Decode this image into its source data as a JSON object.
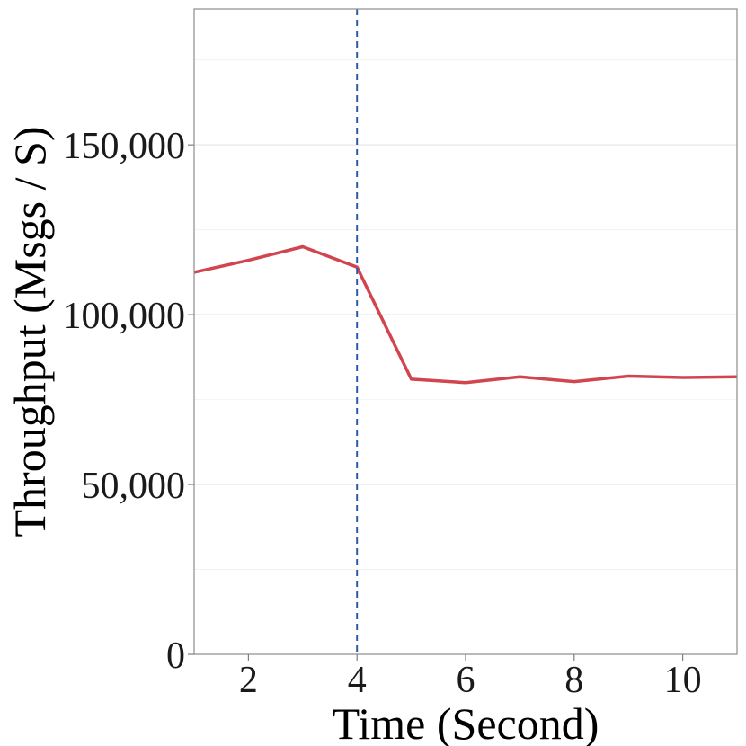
{
  "chart_data": {
    "type": "line",
    "xlabel": "Time (Second)",
    "ylabel": "Throughput (Msgs / S)",
    "xlim": [
      1,
      11
    ],
    "ylim": [
      0,
      190000
    ],
    "x_ticks": [
      2,
      4,
      6,
      8,
      10
    ],
    "x_tick_labels": [
      "2",
      "4",
      "6",
      "8",
      "10"
    ],
    "y_ticks": [
      0,
      50000,
      100000,
      150000
    ],
    "y_tick_labels": [
      "0",
      "50,000",
      "100,000",
      "150,000"
    ],
    "y_minor_gridlines": [
      25000,
      75000,
      125000,
      175000
    ],
    "grid": true,
    "series": [
      {
        "color": "#d1454f",
        "x": [
          1,
          2,
          3,
          4,
          5,
          6,
          7,
          8,
          9,
          10,
          11
        ],
        "values": [
          112500,
          116000,
          120000,
          114000,
          81000,
          80000,
          81700,
          80300,
          81900,
          81500,
          81700
        ]
      }
    ],
    "vertical_marker": {
      "x": 4,
      "color": "#2b5ca8",
      "style": "dashed"
    }
  }
}
